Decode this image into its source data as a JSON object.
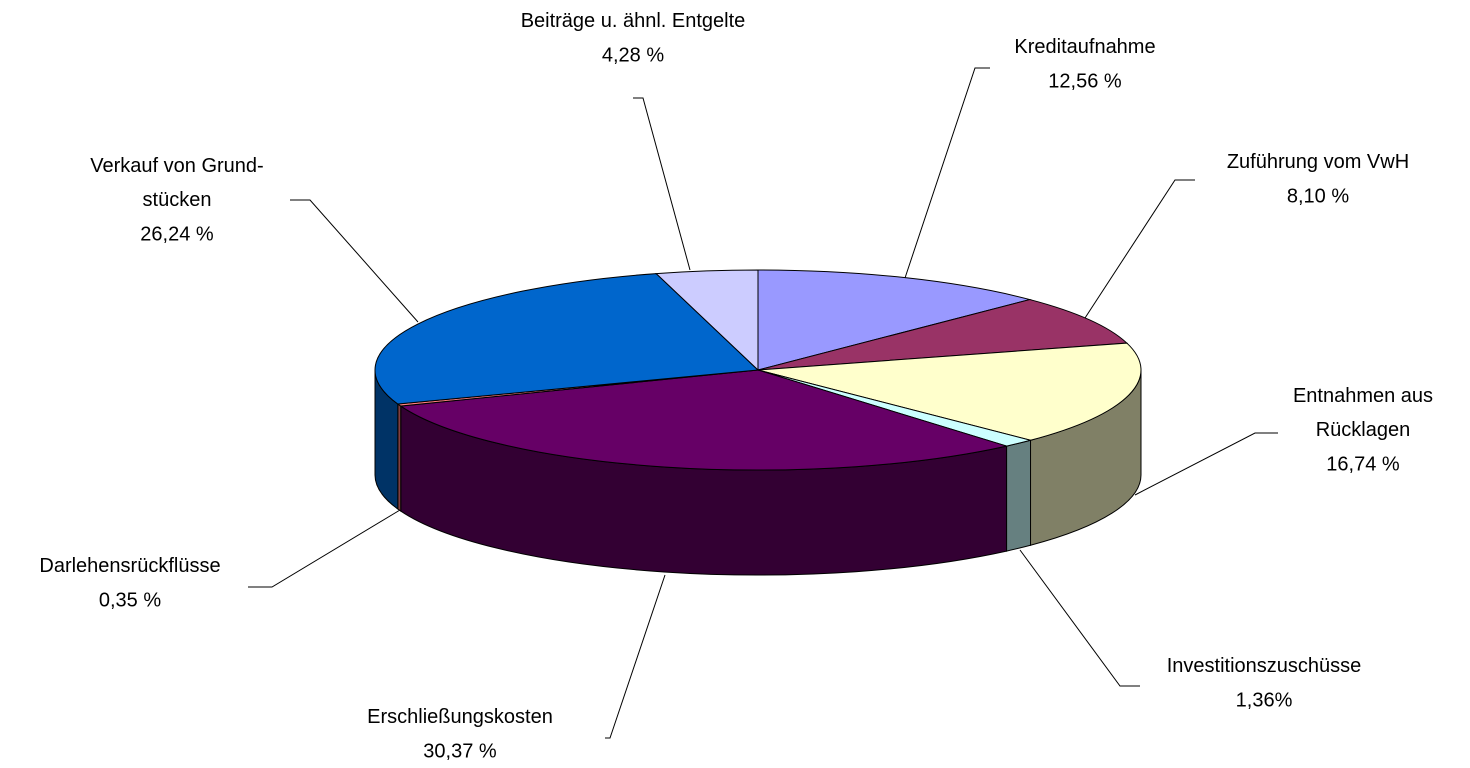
{
  "chart_data": {
    "type": "pie3d",
    "categories": [
      "Kreditaufnahme",
      "Zuführung vom VwH",
      "Entnahmen aus\nRücklagen",
      "Investitionszuschüsse",
      "Erschließungskosten",
      "Darlehensrückflüsse",
      "Verkauf von Grund-\nstücken",
      "Beiträge u. ähnl. Entgelte"
    ],
    "values": [
      12.56,
      8.1,
      16.74,
      1.36,
      30.37,
      0.35,
      26.24,
      4.28
    ],
    "value_labels": [
      "12,56 %",
      "8,10 %",
      "16,74 %",
      "1,36%",
      "30,37 %",
      "0,35 %",
      "26,24 %",
      "4,28 %"
    ],
    "colors": [
      "#9999ff",
      "#993366",
      "#ffffcc",
      "#ccffff",
      "#660066",
      "#ff8080",
      "#0066cc",
      "#ccccff"
    ]
  }
}
